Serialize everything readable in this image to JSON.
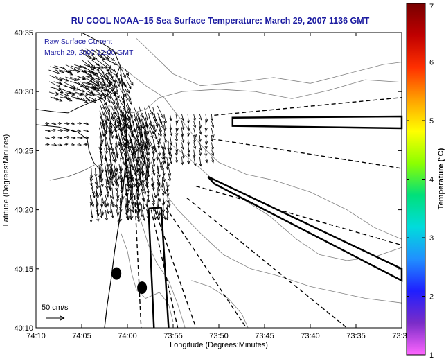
{
  "chart_data": {
    "type": "vector-field-map",
    "title": "RU COOL  NOAA−15  Sea Surface Temperature:  March 29, 2007 1136 GMT",
    "annotation_lines": [
      "Raw Surface Current",
      "March 29, 2007 12:00 GMT"
    ],
    "xlabel": "Longitude (Degrees:Minutes)",
    "ylabel": "Latitude (Degrees:Minutes)",
    "x_ticks": [
      "74:10",
      "74:05",
      "74:00",
      "73:55",
      "73:50",
      "73:45",
      "73:40",
      "73:35",
      "73:30"
    ],
    "y_ticks": [
      "40:10",
      "40:15",
      "40:20",
      "40:25",
      "40:30",
      "40:35"
    ],
    "xlim_minutes_west": [
      10,
      30
    ],
    "ylim_minutes_north": [
      10,
      35
    ],
    "scale_label": "50 cm/s",
    "colorbar": {
      "label": "Temperature (°C)",
      "range": [
        1,
        7
      ],
      "ticks": [
        "1",
        "2",
        "3",
        "4",
        "5",
        "6",
        "7"
      ],
      "colors": [
        "#ff66ff",
        "#7a2cc8",
        "#1f1fff",
        "#2090ff",
        "#00dcdc",
        "#00e07a",
        "#8cff00",
        "#ffff00",
        "#ffa000",
        "#ff3000",
        "#c00000",
        "#780000"
      ]
    },
    "vector_scale_cm_s": 50,
    "vector_field": {
      "description_of_centers": "current vectors (cm/s) at [lon_min_west, lat_min_north]",
      "regions": [
        {
          "lon": [
            4,
            8.5
          ],
          "lat": [
            29.5,
            32.5
          ],
          "u": 40,
          "v": -15
        },
        {
          "lon": [
            2,
            5
          ],
          "lat": [
            30,
            34
          ],
          "u": 35,
          "v": -25
        },
        {
          "lon": [
            0,
            3
          ],
          "lat": [
            27.5,
            32
          ],
          "u": 20,
          "v": -40
        },
        {
          "lon": [
            -2,
            3
          ],
          "lat": [
            23,
            28
          ],
          "u": 10,
          "v": -55
        },
        {
          "lon": [
            -1,
            4
          ],
          "lat": [
            20,
            24
          ],
          "u": 5,
          "v": -45
        },
        {
          "lon": [
            -4.5,
            0
          ],
          "lat": [
            20,
            26
          ],
          "u": 5,
          "v": -40
        },
        {
          "lon": [
            -3.5,
            1
          ],
          "lat": [
            26,
            29
          ],
          "u": 15,
          "v": -45
        }
      ]
    },
    "radar_wedges": [
      {
        "kind": "dashed",
        "from": [
          -10,
          27.5
        ],
        "to": [
          -18,
          27
        ]
      },
      {
        "kind": "dashed",
        "from": [
          -10,
          26
        ],
        "to": [
          -18,
          24
        ]
      },
      {
        "kind": "dashed",
        "from": [
          -8,
          21.5
        ],
        "to": [
          -18,
          17
        ]
      },
      {
        "kind": "dashed",
        "from": [
          -6,
          20
        ],
        "to": [
          -14,
          10
        ]
      },
      {
        "kind": "dashed",
        "from": [
          -4,
          19
        ],
        "to": [
          -7,
          10
        ]
      }
    ],
    "masks": [
      {
        "kind": "outlined-bar",
        "name": "bar-north-east"
      },
      {
        "kind": "outlined-bar",
        "name": "bar-south-east"
      },
      {
        "kind": "outlined-bar",
        "name": "bar-south"
      }
    ],
    "blobs": [
      {
        "lon_min": 1.2,
        "lat_min": 14.6
      },
      {
        "lon_min": -1.6,
        "lat_min": 13.4
      }
    ]
  }
}
